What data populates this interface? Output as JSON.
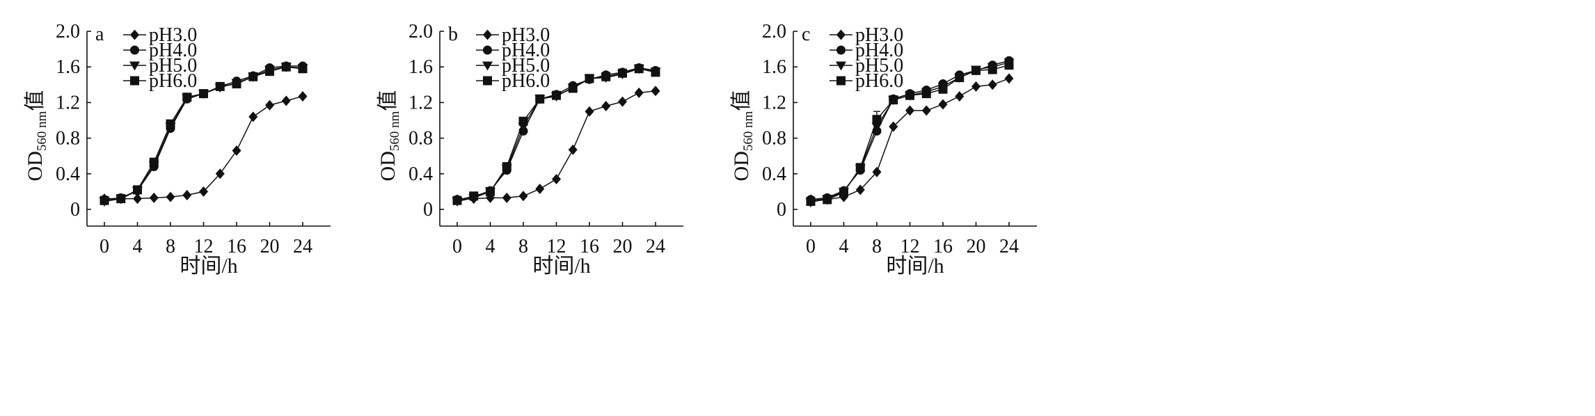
{
  "chart_data": [
    {
      "type": "line",
      "panel_label": "a",
      "xlabel": "时间/h",
      "ylabel": {
        "main": "OD",
        "subscript": "560 nm",
        "suffix": "值"
      },
      "xlim": [
        0,
        24
      ],
      "ylim": [
        0,
        2.0
      ],
      "x_ticks": [
        "0",
        "4",
        "8",
        "12",
        "16",
        "20",
        "24"
      ],
      "y_ticks": [
        "0",
        "0.4",
        "0.8",
        "1.2",
        "1.6",
        "2.0"
      ],
      "legend_position": "top-left",
      "x": [
        0,
        2,
        4,
        6,
        8,
        10,
        12,
        14,
        16,
        18,
        20,
        22,
        24
      ],
      "series": [
        {
          "name": "pH3.0",
          "marker": "diamond",
          "values": [
            0.12,
            0.12,
            0.12,
            0.13,
            0.14,
            0.16,
            0.2,
            0.4,
            0.66,
            1.04,
            1.17,
            1.22,
            1.27
          ]
        },
        {
          "name": "pH4.0",
          "marker": "circle",
          "values": [
            0.11,
            0.13,
            0.21,
            0.48,
            0.91,
            1.24,
            1.3,
            1.38,
            1.44,
            1.5,
            1.59,
            1.61,
            1.61
          ]
        },
        {
          "name": "pH5.0",
          "marker": "triangle-down",
          "values": [
            0.09,
            0.12,
            0.21,
            0.5,
            0.93,
            1.25,
            1.3,
            1.37,
            1.42,
            1.49,
            1.57,
            1.6,
            1.59
          ]
        },
        {
          "name": "pH6.0",
          "marker": "square",
          "values": [
            0.1,
            0.12,
            0.22,
            0.53,
            0.96,
            1.26,
            1.3,
            1.38,
            1.41,
            1.49,
            1.55,
            1.6,
            1.58
          ]
        }
      ]
    },
    {
      "type": "line",
      "panel_label": "b",
      "xlabel": "时间/h",
      "ylabel": {
        "main": "OD",
        "subscript": "560 nm",
        "suffix": "值"
      },
      "xlim": [
        0,
        24
      ],
      "ylim": [
        0,
        2.0
      ],
      "x_ticks": [
        "0",
        "4",
        "8",
        "12",
        "16",
        "20",
        "24"
      ],
      "y_ticks": [
        "0",
        "0.4",
        "0.8",
        "1.2",
        "1.6",
        "2.0"
      ],
      "legend_position": "top-left",
      "x": [
        0,
        2,
        4,
        6,
        8,
        10,
        12,
        14,
        16,
        18,
        20,
        22,
        24
      ],
      "series": [
        {
          "name": "pH3.0",
          "marker": "diamond",
          "values": [
            0.11,
            0.12,
            0.13,
            0.13,
            0.15,
            0.23,
            0.34,
            0.67,
            1.1,
            1.16,
            1.21,
            1.31,
            1.33
          ]
        },
        {
          "name": "pH4.0",
          "marker": "circle",
          "values": [
            0.11,
            0.14,
            0.21,
            0.44,
            0.88,
            1.24,
            1.29,
            1.39,
            1.46,
            1.51,
            1.54,
            1.59,
            1.56
          ]
        },
        {
          "name": "pH5.0",
          "marker": "triangle-down",
          "values": [
            0.09,
            0.13,
            0.2,
            0.46,
            0.93,
            1.24,
            1.27,
            1.37,
            1.47,
            1.48,
            1.52,
            1.58,
            1.55
          ]
        },
        {
          "name": "pH6.0",
          "marker": "square",
          "values": [
            0.1,
            0.15,
            0.2,
            0.48,
            0.99,
            1.24,
            1.28,
            1.36,
            1.47,
            1.49,
            1.53,
            1.58,
            1.54
          ]
        }
      ]
    },
    {
      "type": "line",
      "panel_label": "c",
      "xlabel": "时间/h",
      "ylabel": {
        "main": "OD",
        "subscript": "560 nm",
        "suffix": "值"
      },
      "xlim": [
        0,
        24
      ],
      "ylim": [
        0,
        2.0
      ],
      "x_ticks": [
        "0",
        "4",
        "8",
        "12",
        "16",
        "20",
        "24"
      ],
      "y_ticks": [
        "0",
        "0.4",
        "0.8",
        "1.2",
        "1.6",
        "2.0"
      ],
      "legend_position": "top-left",
      "x": [
        0,
        2,
        4,
        6,
        8,
        10,
        12,
        14,
        16,
        18,
        20,
        22,
        24
      ],
      "error_bars": [
        {
          "series": "pH6.0",
          "x": 8,
          "low": 0.93,
          "high": 1.1
        }
      ],
      "series": [
        {
          "name": "pH3.0",
          "marker": "diamond",
          "values": [
            0.11,
            0.11,
            0.14,
            0.22,
            0.42,
            0.93,
            1.11,
            1.11,
            1.18,
            1.27,
            1.38,
            1.4,
            1.47
          ]
        },
        {
          "name": "pH4.0",
          "marker": "circle",
          "values": [
            0.11,
            0.13,
            0.21,
            0.44,
            0.88,
            1.24,
            1.3,
            1.34,
            1.41,
            1.51,
            1.56,
            1.62,
            1.67
          ]
        },
        {
          "name": "pH5.0",
          "marker": "triangle-down",
          "values": [
            0.08,
            0.12,
            0.2,
            0.46,
            0.93,
            1.23,
            1.28,
            1.32,
            1.38,
            1.48,
            1.57,
            1.6,
            1.65
          ]
        },
        {
          "name": "pH6.0",
          "marker": "square",
          "values": [
            0.09,
            0.11,
            0.19,
            0.47,
            1.01,
            1.23,
            1.28,
            1.3,
            1.35,
            1.48,
            1.56,
            1.57,
            1.62
          ]
        }
      ]
    }
  ]
}
